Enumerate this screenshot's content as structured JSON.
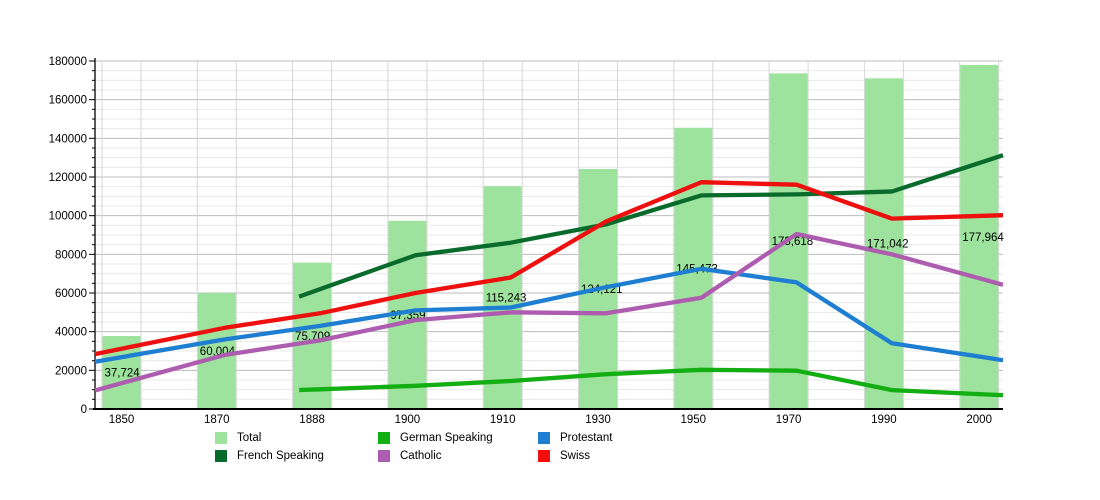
{
  "chart_data": {
    "type": "bar+line",
    "title": "",
    "xlabel": "",
    "ylabel": "",
    "categories": [
      "1850",
      "1870",
      "1888",
      "1900",
      "1910",
      "1930",
      "1950",
      "1970",
      "1990",
      "2000"
    ],
    "series": [
      {
        "name": "Total",
        "type": "bar",
        "color": "#9de29d",
        "values": [
          37724,
          60004,
          75709,
          97359,
          115243,
          124121,
          145473,
          173618,
          171042,
          177964
        ],
        "value_labels": [
          "37,724",
          "60,004",
          "75,709",
          "97,359",
          "115,243",
          "124,121",
          "145,473",
          "173,618",
          "171,042",
          "177,964"
        ]
      },
      {
        "name": "German Speaking",
        "type": "line",
        "color": "#12ae12",
        "values": [
          null,
          null,
          10200,
          12000,
          14500,
          18000,
          20300,
          19800,
          9800,
          7500
        ]
      },
      {
        "name": "Protestant",
        "type": "line",
        "color": "#1e7ed2",
        "values": [
          27500,
          36000,
          43000,
          51000,
          52500,
          63000,
          72500,
          65500,
          34000,
          26500
        ]
      },
      {
        "name": "French Speaking",
        "type": "line",
        "color": "#086b2c",
        "values": [
          null,
          null,
          62000,
          79500,
          86000,
          95500,
          110500,
          111000,
          112500,
          128600
        ]
      },
      {
        "name": "Catholic",
        "type": "line",
        "color": "#ad5cb0",
        "values": [
          14500,
          28000,
          35500,
          46000,
          50000,
          49500,
          57500,
          90500,
          80000,
          66500
        ]
      },
      {
        "name": "Swiss",
        "type": "line",
        "color": "#ee0f0f",
        "values": [
          32000,
          42000,
          49500,
          60000,
          68000,
          97000,
          117300,
          116000,
          98500,
          100000
        ]
      }
    ],
    "ylim": [
      0,
      180000
    ],
    "y_tick_step": 20000,
    "y_minor_step": 5000,
    "y_tick_labels": [
      "0",
      "20000",
      "40000",
      "60000",
      "80000",
      "100000",
      "120000",
      "140000",
      "160000",
      "180000"
    ],
    "grid": "on",
    "legend_position": "bottom"
  },
  "colors": {
    "grid_major": "#bdbdbd",
    "grid_minor": "#e8e8e8",
    "grid_vertical": "#d6d6d6",
    "axis": "#000000",
    "text": "#000000",
    "background": "#ffffff"
  }
}
